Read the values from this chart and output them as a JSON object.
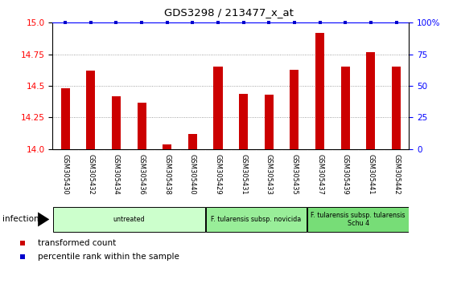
{
  "title": "GDS3298 / 213477_x_at",
  "samples": [
    "GSM305430",
    "GSM305432",
    "GSM305434",
    "GSM305436",
    "GSM305438",
    "GSM305440",
    "GSM305429",
    "GSM305431",
    "GSM305433",
    "GSM305435",
    "GSM305437",
    "GSM305439",
    "GSM305441",
    "GSM305442"
  ],
  "bar_values": [
    14.48,
    14.62,
    14.42,
    14.37,
    14.04,
    14.12,
    14.65,
    14.44,
    14.43,
    14.63,
    14.92,
    14.65,
    14.77,
    14.65
  ],
  "percentile_values": [
    100,
    100,
    100,
    100,
    100,
    100,
    100,
    100,
    100,
    100,
    100,
    100,
    100,
    100
  ],
  "bar_color": "#CC0000",
  "dot_color": "#0000CC",
  "ylim_left": [
    14.0,
    15.0
  ],
  "ylim_right": [
    0,
    100
  ],
  "yticks_left": [
    14.0,
    14.25,
    14.5,
    14.75,
    15.0
  ],
  "yticks_right": [
    0,
    25,
    50,
    75,
    100
  ],
  "yticklabels_right": [
    "0",
    "25",
    "50",
    "75",
    "100%"
  ],
  "groups": [
    {
      "label": "untreated",
      "start": 0,
      "end": 6,
      "color": "#ccffcc"
    },
    {
      "label": "F. tularensis subsp. novicida",
      "start": 6,
      "end": 10,
      "color": "#99ee99"
    },
    {
      "label": "F. tularensis subsp. tularensis\nSchu 4",
      "start": 10,
      "end": 14,
      "color": "#77dd77"
    }
  ],
  "infection_label": "infection",
  "legend_items": [
    {
      "color": "#CC0000",
      "label": "transformed count"
    },
    {
      "color": "#0000CC",
      "label": "percentile rank within the sample"
    }
  ],
  "bar_width": 0.35,
  "plot_bg_color": "#ffffff",
  "xtick_bg_color": "#d8d8d8",
  "dotted_line_color": "#888888"
}
